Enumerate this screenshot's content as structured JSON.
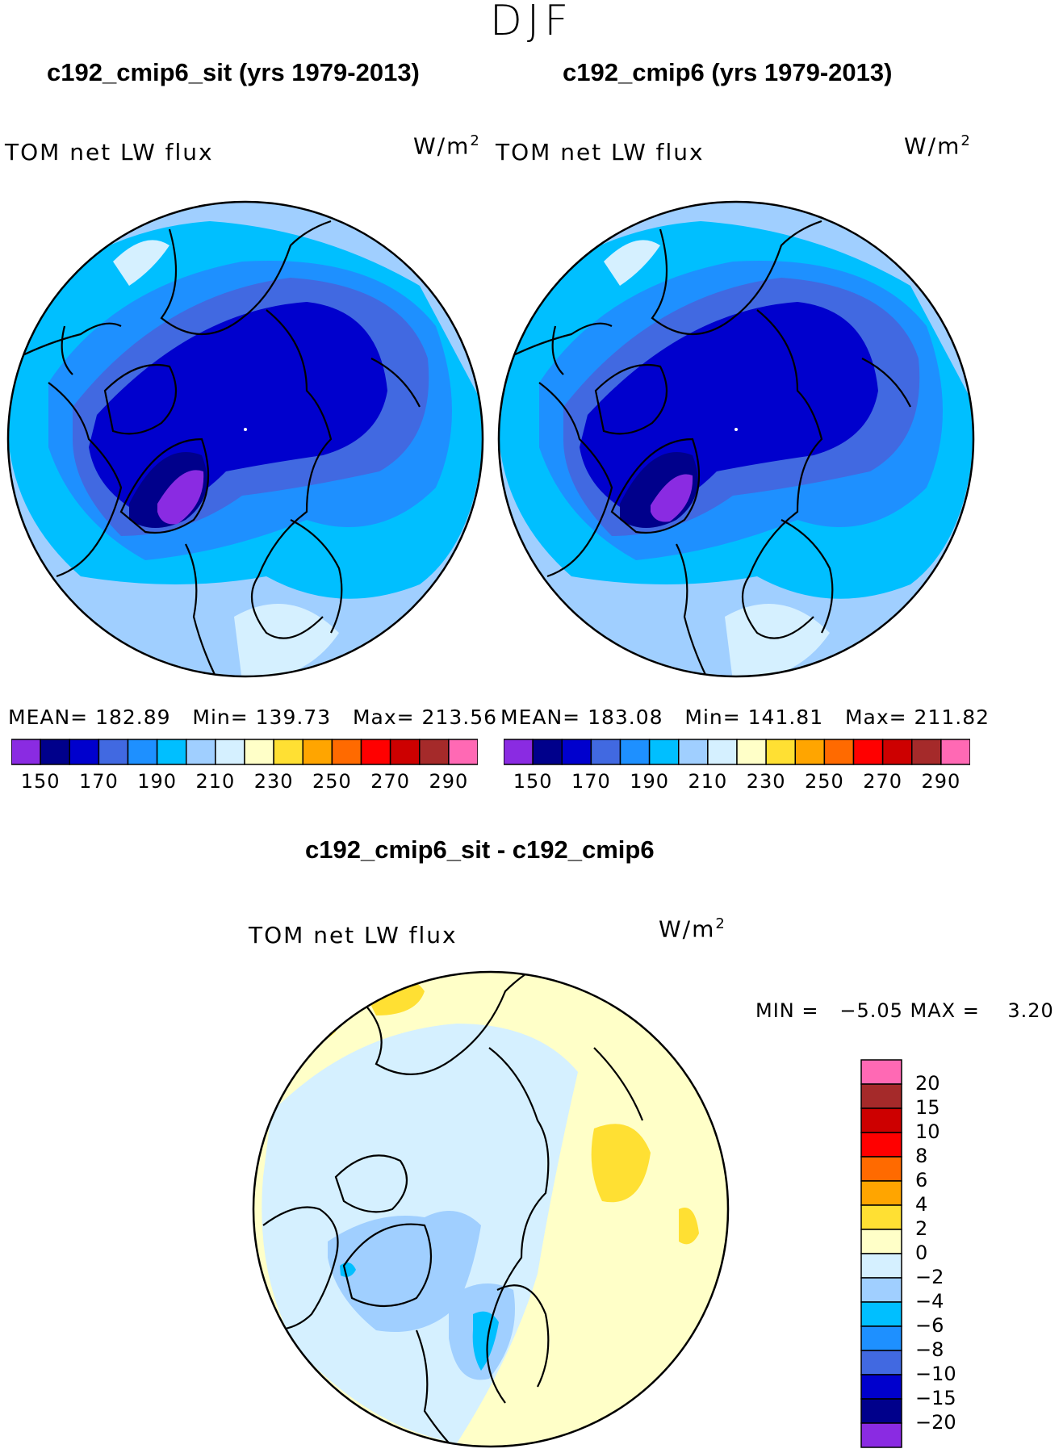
{
  "season": "DJF",
  "left_title": "c192_cmip6_sit (yrs 1979-2013)",
  "right_title": "c192_cmip6 (yrs 1979-2013)",
  "diff_title": "c192_cmip6_sit - c192_cmip6",
  "variable": "TOM net LW flux",
  "units_base": "W/m",
  "units_exp": "2",
  "left_stats": {
    "mean": "MEAN= 182.89",
    "min": "Min= 139.73",
    "max": "Max= 213.56"
  },
  "right_stats": {
    "mean": "MEAN= 183.08",
    "min": "Min= 141.81",
    "max": "Max= 211.82"
  },
  "diff_stats": "MIN =   −5.05 MAX =    3.20",
  "chart_data": [
    {
      "type": "heatmap",
      "projection": "north-polar-stereographic",
      "title": "c192_cmip6_sit (yrs 1979-2013)",
      "variable": "TOM net LW flux",
      "units": "W/m^2",
      "mean": 182.89,
      "min": 139.73,
      "max": 213.56,
      "colors": [
        "#8a2be2",
        "#00008b",
        "#0000cd",
        "#4169e1",
        "#1e90ff",
        "#00bfff",
        "#a0cfff",
        "#d5f0ff",
        "#ffffc8",
        "#ffe033",
        "#ffa500",
        "#ff6a00",
        "#ff0000",
        "#cd0000",
        "#a52a2a",
        "#ff69b4"
      ],
      "tick_labels": [
        "150",
        "170",
        "190",
        "210",
        "230",
        "250",
        "270",
        "290"
      ]
    },
    {
      "type": "heatmap",
      "projection": "north-polar-stereographic",
      "title": "c192_cmip6 (yrs 1979-2013)",
      "variable": "TOM net LW flux",
      "units": "W/m^2",
      "mean": 183.08,
      "min": 141.81,
      "max": 211.82,
      "colors": [
        "#8a2be2",
        "#00008b",
        "#0000cd",
        "#4169e1",
        "#1e90ff",
        "#00bfff",
        "#a0cfff",
        "#d5f0ff",
        "#ffffc8",
        "#ffe033",
        "#ffa500",
        "#ff6a00",
        "#ff0000",
        "#cd0000",
        "#a52a2a",
        "#ff69b4"
      ],
      "tick_labels": [
        "150",
        "170",
        "190",
        "210",
        "230",
        "250",
        "270",
        "290"
      ]
    },
    {
      "type": "heatmap",
      "projection": "north-polar-stereographic",
      "title": "c192_cmip6_sit - c192_cmip6",
      "variable": "TOM net LW flux",
      "units": "W/m^2",
      "min": -5.05,
      "max": 3.2,
      "levels_top_to_bottom": [
        "20",
        "15",
        "10",
        "8",
        "6",
        "4",
        "2",
        "0",
        "−2",
        "−4",
        "−6",
        "−8",
        "−10",
        "−15",
        "−20"
      ],
      "colors_top_to_bottom": [
        "#ff69b4",
        "#a52a2a",
        "#cd0000",
        "#ff0000",
        "#ff6a00",
        "#ffa500",
        "#ffe033",
        "#ffffc8",
        "#d5f0ff",
        "#a0cfff",
        "#00bfff",
        "#1e90ff",
        "#4169e1",
        "#0000cd",
        "#00008b",
        "#8a2be2"
      ]
    }
  ]
}
